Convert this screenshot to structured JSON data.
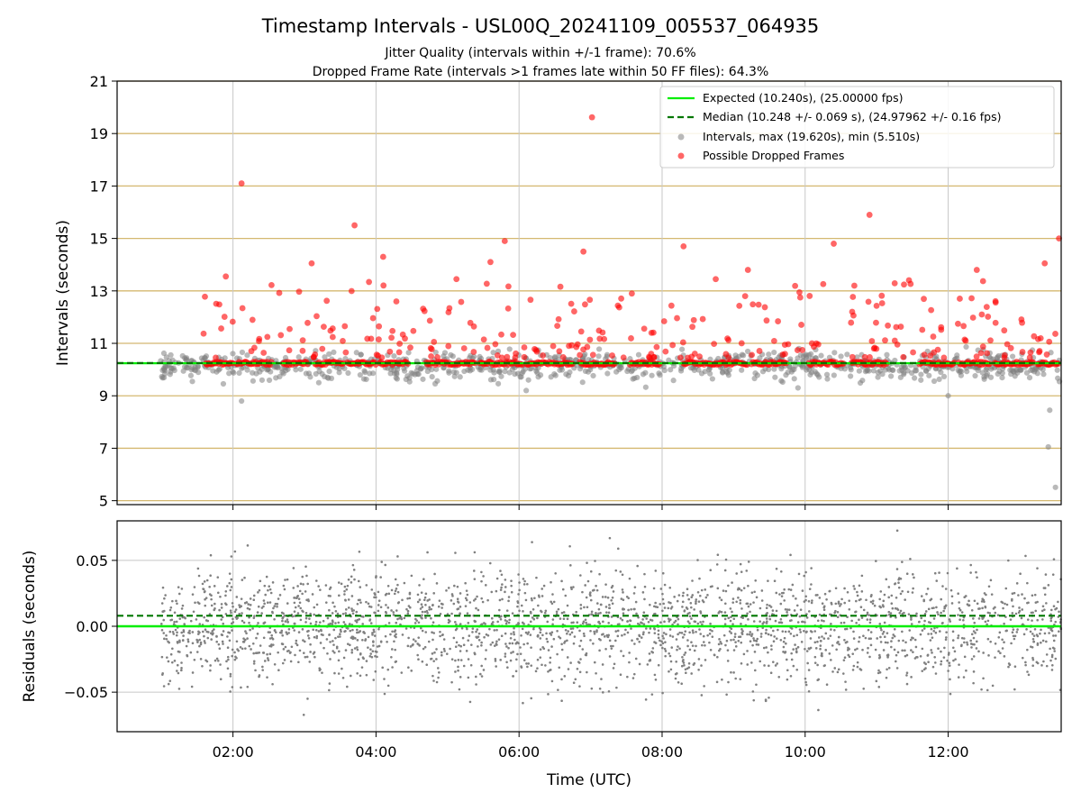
{
  "chart_data": [
    {
      "type": "scatter",
      "title": "Timestamp Intervals - USL00Q_20241109_005537_064935",
      "subtitle_lines": [
        "Jitter Quality (intervals within +/-1 frame): 70.6%",
        "Dropped Frame Rate (intervals >1 frames late within 50 FF files): 64.3%"
      ],
      "xlabel": "",
      "ylabel": "Intervals (seconds)",
      "xlim_hours": [
        0.38,
        13.58
      ],
      "ylim": [
        4.85,
        21
      ],
      "x_ticks": [
        {
          "v": 2,
          "label": "02:00"
        },
        {
          "v": 4,
          "label": "04:00"
        },
        {
          "v": 6,
          "label": "06:00"
        },
        {
          "v": 8,
          "label": "08:00"
        },
        {
          "v": 10,
          "label": "10:00"
        },
        {
          "v": 12,
          "label": "12:00"
        }
      ],
      "y_ticks": [
        {
          "v": 5,
          "label": "5"
        },
        {
          "v": 7,
          "label": "7"
        },
        {
          "v": 9,
          "label": "9"
        },
        {
          "v": 11,
          "label": "11"
        },
        {
          "v": 13,
          "label": "13"
        },
        {
          "v": 15,
          "label": "15"
        },
        {
          "v": 17,
          "label": "17"
        },
        {
          "v": 19,
          "label": "19"
        },
        {
          "v": 21,
          "label": "21"
        }
      ],
      "grid": true,
      "legend_position": "upper-right",
      "colors": {
        "expected": "#00ee00",
        "median": "#007700",
        "intervals": "#808080",
        "dropped": "#ff0000",
        "hgrid": "#d4b870",
        "vgrid": "#c8c8c8"
      },
      "series": [
        {
          "name": "Expected (10.240s), (25.00000 fps)",
          "kind": "hline",
          "y": 10.24
        },
        {
          "name": "Median (10.248 +/- 0.069 s), (24.97962 +/- 0.16 fps)",
          "kind": "hline-dashed",
          "y": 10.248
        },
        {
          "name": "Intervals, max (19.620s), min (5.510s)",
          "kind": "scatter",
          "points": [
            [
              13.42,
              8.45
            ],
            [
              13.4,
              7.05
            ],
            [
              13.5,
              5.51
            ],
            [
              2.12,
              8.8
            ],
            [
              3.2,
              9.5
            ],
            [
              6.1,
              9.2
            ],
            [
              9.9,
              9.3
            ],
            [
              12.0,
              9.0
            ]
          ]
        },
        {
          "name": "Possible Dropped Frames",
          "kind": "scatter",
          "points": [
            [
              2.12,
              17.1
            ],
            [
              7.02,
              19.62
            ],
            [
              3.7,
              15.5
            ],
            [
              5.8,
              14.9
            ],
            [
              10.9,
              15.9
            ],
            [
              13.55,
              15.0
            ],
            [
              10.4,
              14.8
            ],
            [
              6.9,
              14.5
            ],
            [
              8.3,
              14.7
            ],
            [
              4.1,
              14.3
            ],
            [
              3.1,
              14.05
            ],
            [
              1.9,
              13.55
            ],
            [
              13.35,
              14.05
            ],
            [
              12.4,
              13.8
            ],
            [
              9.2,
              13.8
            ],
            [
              8.75,
              13.45
            ],
            [
              5.6,
              14.1
            ]
          ]
        }
      ]
    },
    {
      "type": "scatter",
      "xlabel": "Time (UTC)",
      "ylabel": "Residuals (seconds)",
      "xlim_hours": [
        0.38,
        13.58
      ],
      "ylim": [
        -0.08,
        0.08
      ],
      "x_ticks": [
        {
          "v": 2,
          "label": "02:00"
        },
        {
          "v": 4,
          "label": "04:00"
        },
        {
          "v": 6,
          "label": "06:00"
        },
        {
          "v": 8,
          "label": "08:00"
        },
        {
          "v": 10,
          "label": "10:00"
        },
        {
          "v": 12,
          "label": "12:00"
        }
      ],
      "y_ticks": [
        {
          "v": 0.05,
          "label": "0.05"
        },
        {
          "v": 0.0,
          "label": "0.00"
        },
        {
          "v": -0.05,
          "label": "−0.05"
        }
      ],
      "grid": true,
      "series": [
        {
          "name": "",
          "kind": "hline",
          "y": 0.0
        },
        {
          "name": "",
          "kind": "hline-dashed",
          "y": 0.008
        },
        {
          "name": "",
          "kind": "scatter",
          "x_range": [
            1.0,
            13.58
          ],
          "count": 2600,
          "spread": 0.03
        }
      ]
    }
  ]
}
